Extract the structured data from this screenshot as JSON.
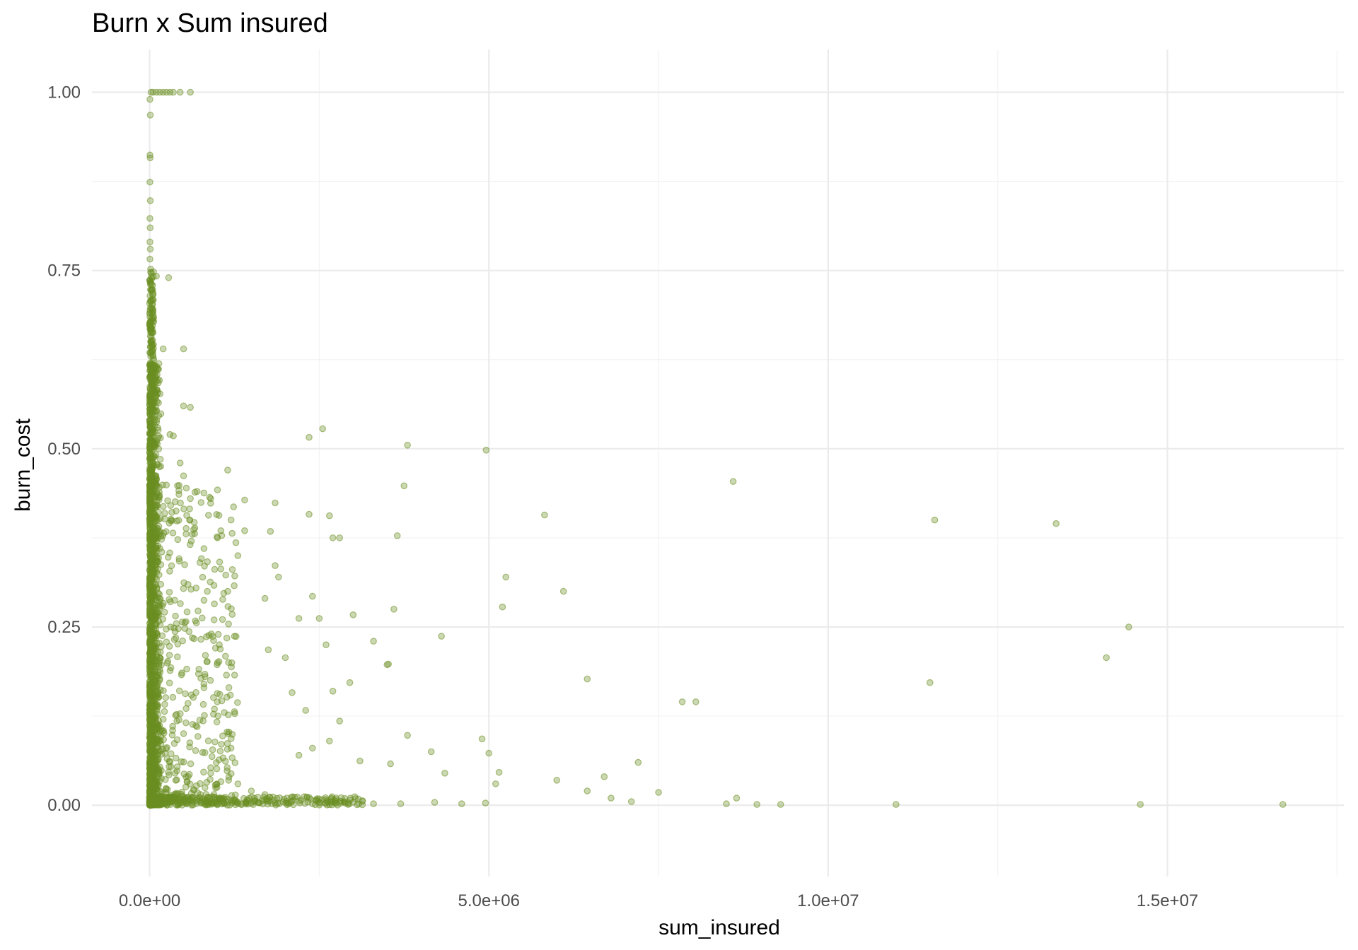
{
  "chart_data": {
    "type": "scatter",
    "title": "Burn x Sum insured",
    "xlabel": "sum_insured",
    "ylabel": "burn_cost",
    "xlim": [
      -850000,
      17600000
    ],
    "ylim": [
      -0.1,
      1.06
    ],
    "x_ticks": [
      0,
      5000000,
      10000000,
      15000000
    ],
    "x_tick_labels": [
      "0.0e+00",
      "5.0e+06",
      "1.0e+07",
      "1.5e+07"
    ],
    "y_ticks": [
      0,
      0.25,
      0.5,
      0.75,
      1
    ],
    "y_tick_labels": [
      "0.00",
      "0.25",
      "0.50",
      "0.75",
      "1.00"
    ],
    "grid": true,
    "point_color": "#6b8e23",
    "point_opacity": 0.35,
    "series": [
      {
        "values": [
          [
            4960000,
            0.498
          ],
          [
            3800000,
            0.505
          ],
          [
            2550000,
            0.528
          ],
          [
            2350000,
            0.516
          ],
          [
            3750000,
            0.448
          ],
          [
            8600000,
            0.454
          ],
          [
            5820000,
            0.407
          ],
          [
            11570000,
            0.4
          ],
          [
            13360000,
            0.395
          ],
          [
            2350000,
            0.408
          ],
          [
            2650000,
            0.406
          ],
          [
            5250000,
            0.32
          ],
          [
            6100000,
            0.3
          ],
          [
            5200000,
            0.278
          ],
          [
            3650000,
            0.378
          ],
          [
            2800000,
            0.375
          ],
          [
            2700000,
            0.375
          ],
          [
            14430000,
            0.25
          ],
          [
            14100000,
            0.207
          ],
          [
            11500000,
            0.172
          ],
          [
            6450000,
            0.177
          ],
          [
            7850000,
            0.145
          ],
          [
            8050000,
            0.145
          ],
          [
            4300000,
            0.237
          ],
          [
            3600000,
            0.275
          ],
          [
            3500000,
            0.197
          ],
          [
            3520000,
            0.198
          ],
          [
            3300000,
            0.23
          ],
          [
            3000000,
            0.267
          ],
          [
            2500000,
            0.262
          ],
          [
            2400000,
            0.293
          ],
          [
            2200000,
            0.262
          ],
          [
            2600000,
            0.225
          ],
          [
            2700000,
            0.16
          ],
          [
            2800000,
            0.118
          ],
          [
            2950000,
            0.172
          ],
          [
            2300000,
            0.133
          ],
          [
            2100000,
            0.158
          ],
          [
            2000000,
            0.207
          ],
          [
            1750000,
            0.218
          ],
          [
            1850000,
            0.336
          ],
          [
            1900000,
            0.32
          ],
          [
            1700000,
            0.29
          ],
          [
            1780000,
            0.384
          ],
          [
            1850000,
            0.424
          ],
          [
            1400000,
            0.428
          ],
          [
            1150000,
            0.47
          ],
          [
            800000,
            0.438
          ],
          [
            1050000,
            0.385
          ],
          [
            1400000,
            0.385
          ],
          [
            1200000,
            0.4
          ],
          [
            3800000,
            0.098
          ],
          [
            4900000,
            0.093
          ],
          [
            5000000,
            0.073
          ],
          [
            5150000,
            0.046
          ],
          [
            5100000,
            0.03
          ],
          [
            4150000,
            0.075
          ],
          [
            4350000,
            0.045
          ],
          [
            3550000,
            0.058
          ],
          [
            3100000,
            0.062
          ],
          [
            2650000,
            0.09
          ],
          [
            2400000,
            0.08
          ],
          [
            2200000,
            0.07
          ],
          [
            6000000,
            0.035
          ],
          [
            6450000,
            0.02
          ],
          [
            6700000,
            0.04
          ],
          [
            7200000,
            0.06
          ],
          [
            7500000,
            0.018
          ],
          [
            7100000,
            0.005
          ],
          [
            6800000,
            0.01
          ],
          [
            8650000,
            0.01
          ],
          [
            8500000,
            0.002
          ],
          [
            8950000,
            0.001
          ],
          [
            9300000,
            0.001
          ],
          [
            11000000,
            0.001
          ],
          [
            14600000,
            0.001
          ],
          [
            16700000,
            0.001
          ],
          [
            4950000,
            0.003
          ],
          [
            4600000,
            0.002
          ],
          [
            4200000,
            0.004
          ],
          [
            3700000,
            0.002
          ],
          [
            3300000,
            0.002
          ],
          [
            3000000,
            0.004
          ],
          [
            2600000,
            0.003
          ],
          [
            2400000,
            0.002
          ],
          [
            2050000,
            0.002
          ],
          [
            1850000,
            0.003
          ],
          [
            1600000,
            0.004
          ],
          [
            1350000,
            0.002
          ],
          [
            1100000,
            0.002
          ],
          [
            900000,
            0.003
          ],
          [
            600000,
            1.0
          ],
          [
            450000,
            1.0
          ],
          [
            350000,
            1.0
          ],
          [
            300000,
            1.0
          ],
          [
            250000,
            1.0
          ],
          [
            200000,
            1.0
          ],
          [
            150000,
            1.0
          ],
          [
            100000,
            1.0
          ],
          [
            50000,
            1.0
          ],
          [
            20000,
            1.0
          ],
          [
            5000,
            0.99
          ],
          [
            10000,
            0.968
          ],
          [
            5000,
            0.912
          ],
          [
            8000,
            0.908
          ],
          [
            5000,
            0.874
          ],
          [
            10000,
            0.848
          ],
          [
            5000,
            0.823
          ],
          [
            8000,
            0.81
          ],
          [
            5000,
            0.79
          ],
          [
            10000,
            0.78
          ],
          [
            5000,
            0.766
          ],
          [
            15000,
            0.752
          ],
          [
            100000,
            0.742
          ],
          [
            280000,
            0.74
          ],
          [
            500000,
            0.64
          ],
          [
            600000,
            0.558
          ],
          [
            500000,
            0.56
          ],
          [
            350000,
            0.518
          ],
          [
            200000,
            0.64
          ],
          [
            300000,
            0.52
          ],
          [
            450000,
            0.48
          ],
          [
            500000,
            0.462
          ],
          [
            600000,
            0.43
          ],
          [
            700000,
            0.44
          ],
          [
            900000,
            0.43
          ],
          [
            1000000,
            0.375
          ],
          [
            1300000,
            0.35
          ],
          [
            1150000,
            0.3
          ],
          [
            850000,
            0.3
          ],
          [
            950000,
            0.26
          ],
          [
            1250000,
            0.237
          ],
          [
            1000000,
            0.2
          ],
          [
            800000,
            0.17
          ],
          [
            1100000,
            0.13
          ],
          [
            700000,
            0.11
          ],
          [
            1200000,
            0.08
          ],
          [
            900000,
            0.045
          ],
          [
            1300000,
            0.03
          ],
          [
            1500000,
            0.02
          ],
          [
            1700000,
            0.015
          ],
          [
            1050000,
            0.01
          ],
          [
            750000,
            0.015
          ]
        ]
      }
    ]
  }
}
